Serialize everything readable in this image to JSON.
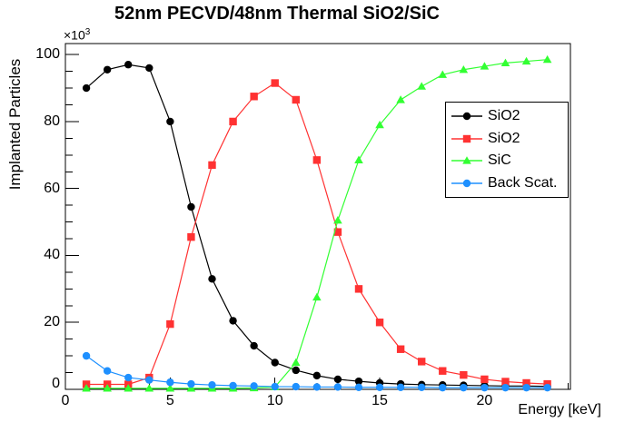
{
  "title": "52nm PECVD/48nm Thermal SiO2/SiC",
  "chart_data": {
    "type": "line",
    "title": "52nm PECVD/48nm Thermal SiO2/SiC",
    "xlabel": "Energy [keV]",
    "ylabel": "Implanted Particles",
    "y_multiplier": "×10",
    "y_multiplier_exp": "3",
    "xlim": [
      0,
      24.1
    ],
    "ylim": [
      0,
      103.3
    ],
    "x_ticks_major": [
      0,
      5,
      10,
      15,
      20
    ],
    "x_minor_step": 1,
    "y_ticks_major": [
      0,
      20,
      40,
      60,
      80,
      100
    ],
    "y_minor_step": 5,
    "grid": false,
    "legend_position": "right-middle",
    "x": [
      1,
      2,
      3,
      4,
      5,
      6,
      7,
      8,
      9,
      10,
      11,
      12,
      13,
      14,
      15,
      16,
      17,
      18,
      19,
      20,
      21,
      22,
      23
    ],
    "series": [
      {
        "name": "SiO2",
        "marker": "circle",
        "color": "#000000",
        "values": [
          90,
          95.5,
          97,
          96,
          80,
          54.5,
          33,
          20.5,
          13,
          8,
          5.7,
          4.1,
          3,
          2.4,
          1.9,
          1.6,
          1.4,
          1.3,
          1.2,
          1.1,
          1,
          1,
          0.9
        ]
      },
      {
        "name": "SiO2",
        "marker": "square",
        "color": "#ff3232",
        "values": [
          1.5,
          1.5,
          1.5,
          3.5,
          19.5,
          45.5,
          67,
          80,
          87.5,
          91.5,
          86.5,
          68.5,
          47,
          30,
          20,
          12,
          8.3,
          5.5,
          4.3,
          3,
          2.3,
          1.9,
          1.6
        ]
      },
      {
        "name": "SiC",
        "marker": "triangle",
        "color": "#32ff32",
        "values": [
          0.3,
          0.3,
          0.3,
          0.3,
          0.3,
          0.3,
          0.3,
          0.3,
          0.4,
          0.7,
          8,
          27.5,
          50.5,
          68.5,
          79,
          86.5,
          90.5,
          94,
          95.5,
          96.5,
          97.5,
          98,
          98.5
        ]
      },
      {
        "name": "Back Scat.",
        "marker": "circle",
        "color": "#1e90ff",
        "values": [
          10,
          5.5,
          3.5,
          2.8,
          2.1,
          1.6,
          1.3,
          1.1,
          1,
          0.8,
          0.8,
          0.7,
          0.7,
          0.6,
          0.6,
          0.6,
          0.6,
          0.5,
          0.5,
          0.5,
          0.5,
          0.5,
          0.5
        ]
      }
    ]
  }
}
